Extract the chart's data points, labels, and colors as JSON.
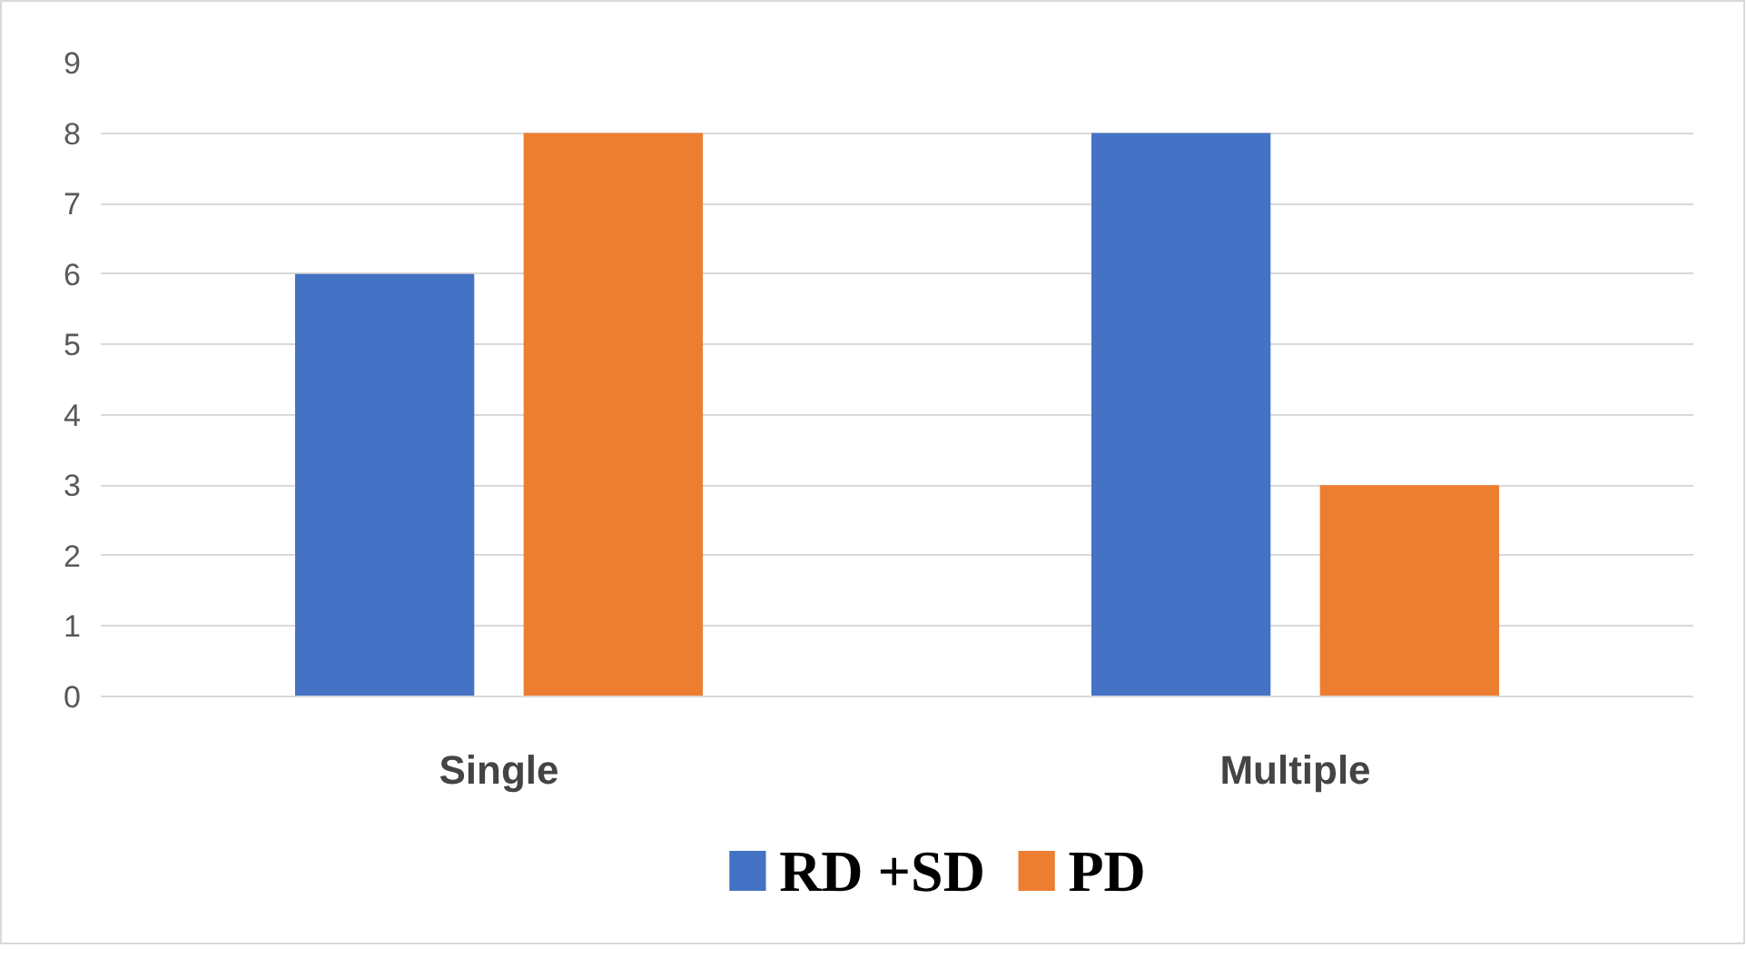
{
  "chart_data": {
    "type": "bar",
    "categories": [
      "Single",
      "Multiple"
    ],
    "series": [
      {
        "name": "RD +SD",
        "color": "#4472c4",
        "values": [
          6,
          8
        ]
      },
      {
        "name": "PD",
        "color": "#ed7d31",
        "values": [
          8,
          3
        ]
      }
    ],
    "ylim": [
      0,
      9
    ],
    "yticks": [
      0,
      1,
      2,
      3,
      4,
      5,
      6,
      7,
      8,
      9
    ],
    "grid": "y",
    "legend": "bottom"
  }
}
